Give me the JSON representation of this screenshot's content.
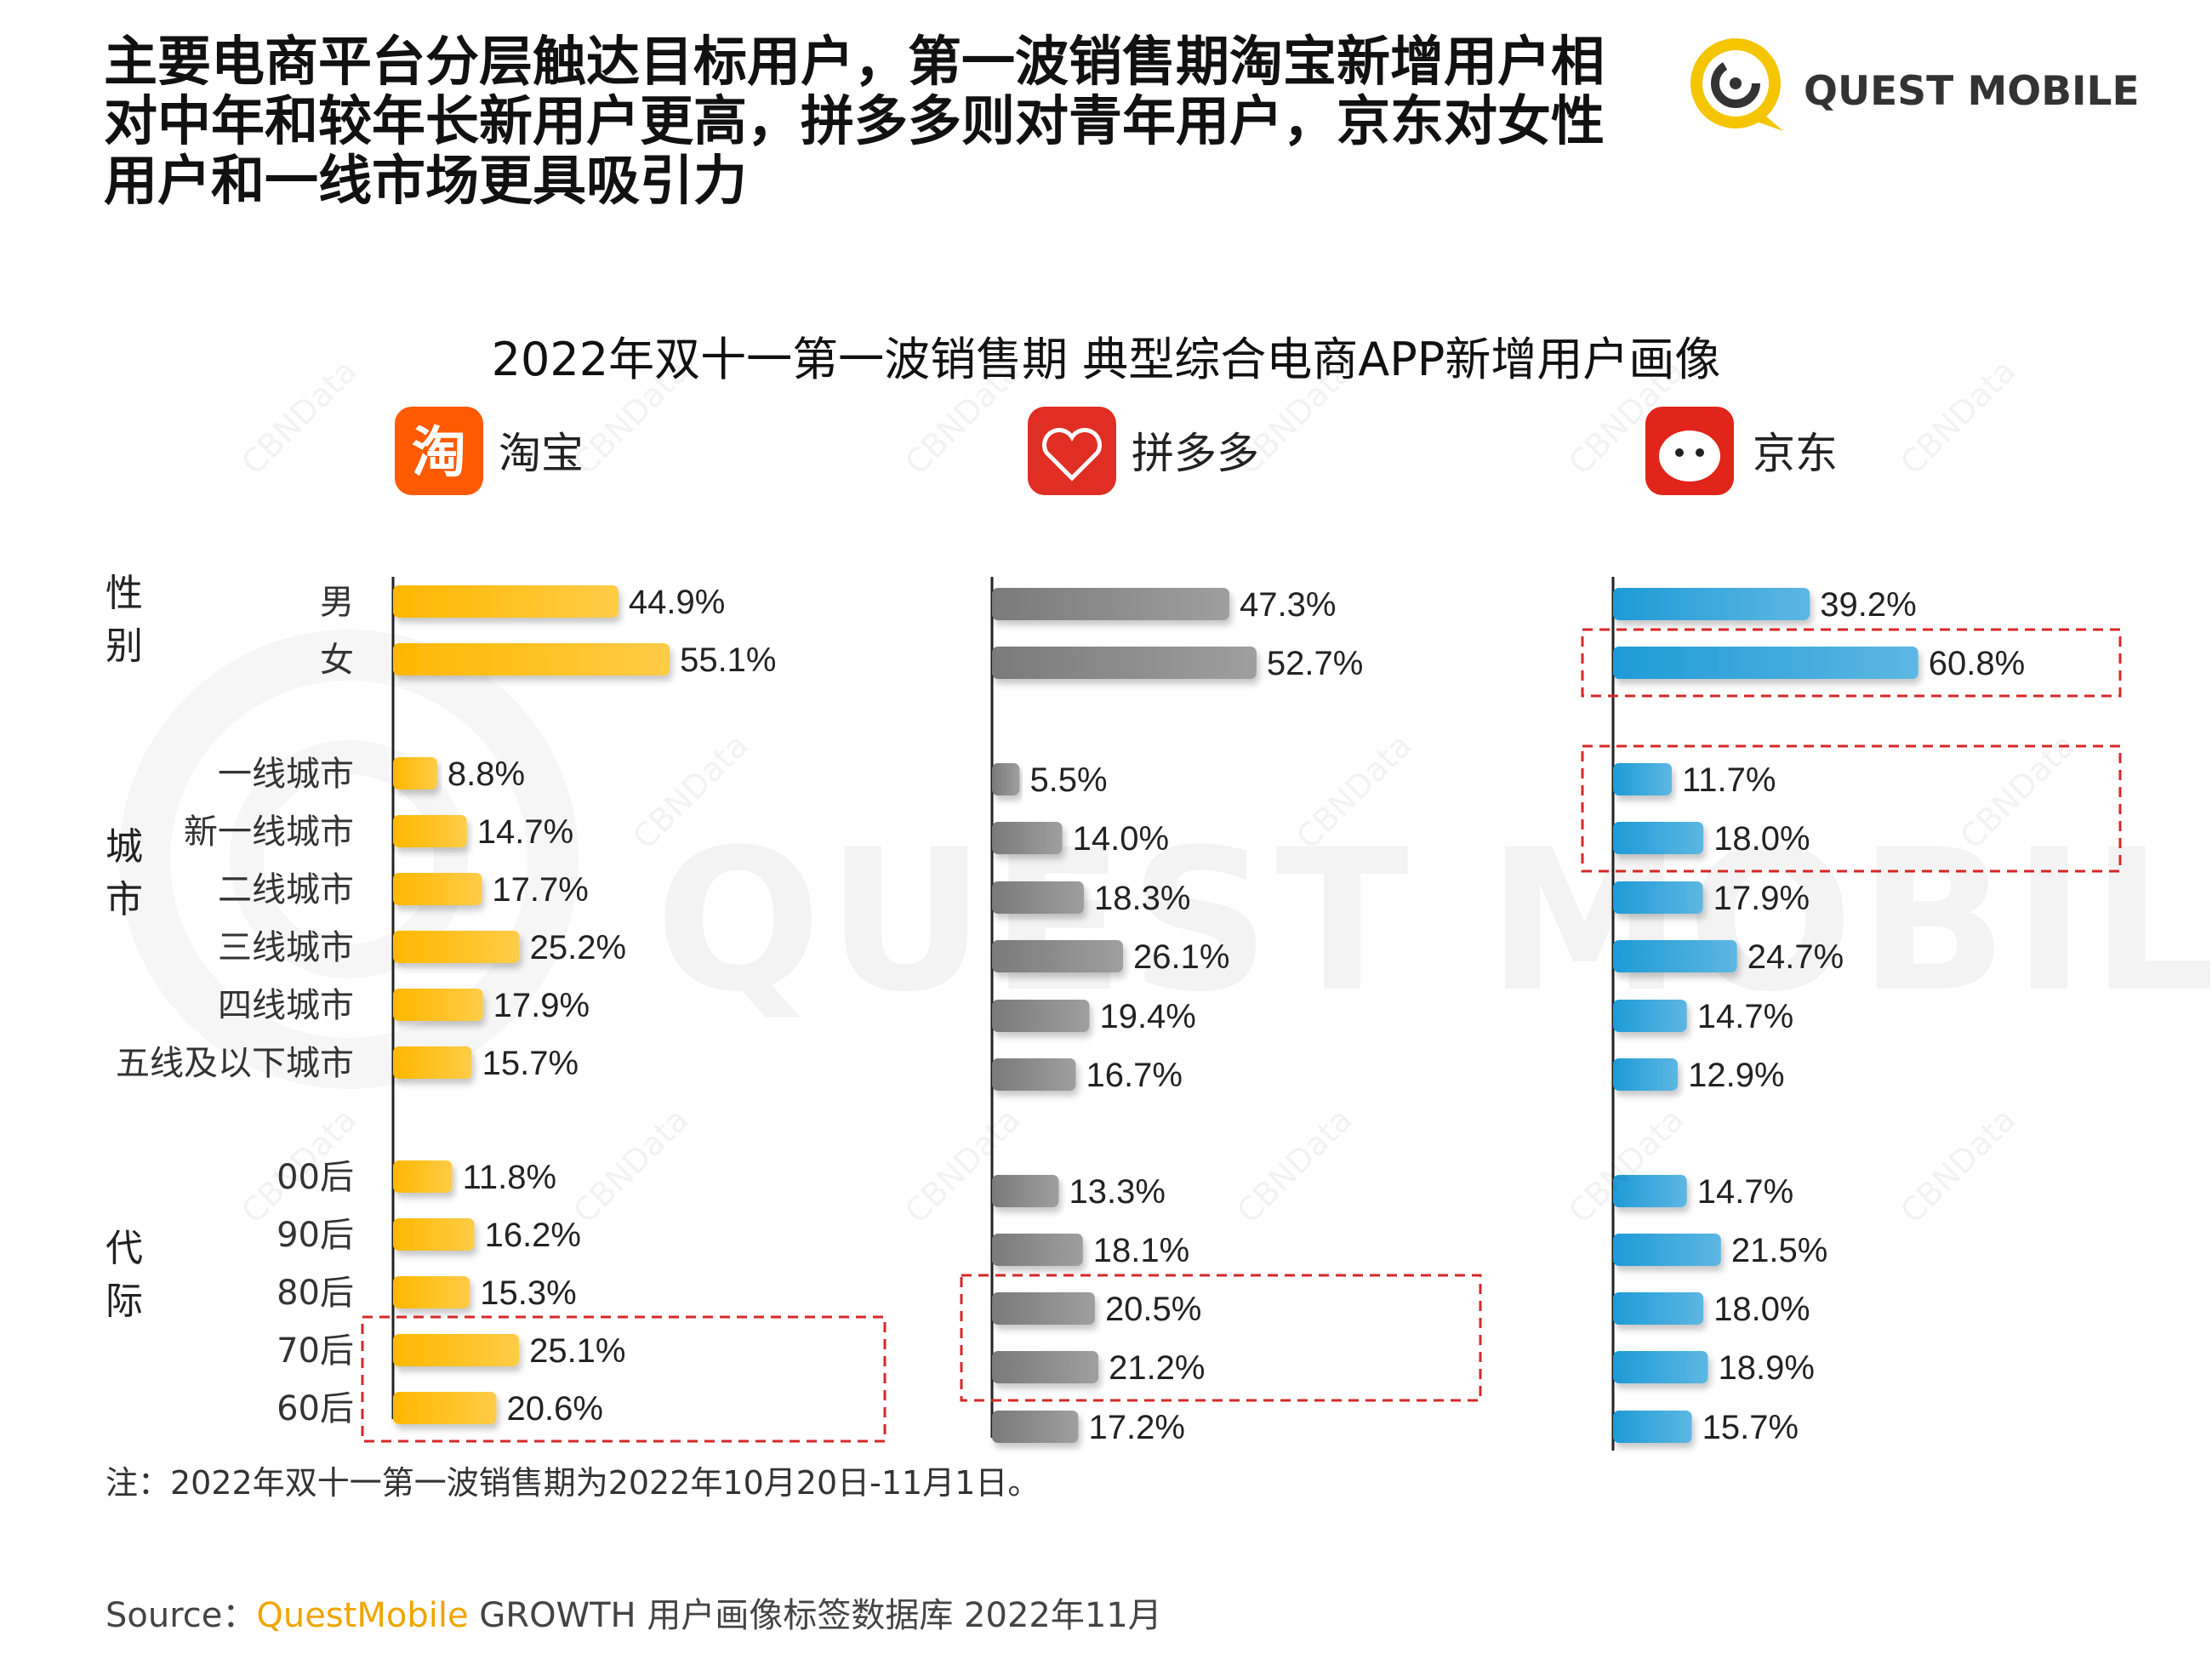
{
  "headline": [
    "主要电商平台分层触达目标用户，第一波销售期淘宝新增用户相",
    "对中年和较年长新用户更高，拼多多则对青年用户，京东对女性",
    "用户和一线市场更具吸引力"
  ],
  "logo": {
    "text": "QUEST MOBILE",
    "icon": "quest-mobile-logo-icon"
  },
  "watermark": {
    "text": "QUEST MOBILE",
    "tile": "CBNData"
  },
  "colors": {
    "taobao": "#FFB800",
    "pdd": "#7A7A7A",
    "jd": "#1E9BD7",
    "highlight": "#D62828",
    "brand": "#F0A500"
  },
  "chart_data": {
    "type": "bar",
    "title": "2022年双十一第一波销售期 典型综合电商APP新增用户画像",
    "groups": [
      {
        "label": "性别",
        "categories": [
          "男",
          "女"
        ]
      },
      {
        "label": "城市",
        "categories": [
          "一线城市",
          "新一线城市",
          "二线城市",
          "三线城市",
          "四线城市",
          "五线及以下城市"
        ]
      },
      {
        "label": "代际",
        "categories": [
          "00后",
          "90后",
          "80后",
          "70后",
          "60后"
        ]
      }
    ],
    "series": [
      {
        "name": "淘宝",
        "icon": "taobao-app-icon",
        "values": [
          [
            44.9,
            55.1
          ],
          [
            8.8,
            14.7,
            17.7,
            25.2,
            17.9,
            15.7
          ],
          [
            11.8,
            16.2,
            15.3,
            25.1,
            20.6
          ]
        ],
        "labels": [
          [
            "44.9%",
            "55.1%"
          ],
          [
            "8.8%",
            "14.7%",
            "17.7%",
            "25.2%",
            "17.9%",
            "15.7%"
          ],
          [
            "11.8%",
            "16.2%",
            "15.3%",
            "25.1%",
            "20.6%"
          ]
        ],
        "highlights": [
          {
            "group": 2,
            "from": 3,
            "to": 4
          }
        ]
      },
      {
        "name": "拼多多",
        "icon": "pinduoduo-app-icon",
        "values": [
          [
            47.3,
            52.7
          ],
          [
            5.5,
            14.0,
            18.3,
            26.1,
            19.4,
            16.7
          ],
          [
            13.3,
            18.1,
            20.5,
            21.2,
            17.2
          ]
        ],
        "labels": [
          [
            "47.3%",
            "52.7%"
          ],
          [
            "5.5%",
            "14.0%",
            "18.3%",
            "26.1%",
            "19.4%",
            "16.7%"
          ],
          [
            "13.3%",
            "18.1%",
            "20.5%",
            "21.2%",
            "17.2%"
          ]
        ],
        "highlights": [
          {
            "group": 2,
            "from": 2,
            "to": 3
          }
        ]
      },
      {
        "name": "京东",
        "icon": "jd-app-icon",
        "values": [
          [
            39.2,
            60.8
          ],
          [
            11.7,
            18.0,
            17.9,
            24.7,
            14.7,
            12.9
          ],
          [
            14.7,
            21.5,
            18.0,
            18.9,
            15.7
          ]
        ],
        "labels": [
          [
            "39.2%",
            "60.8%"
          ],
          [
            "11.7%",
            "18.0%",
            "17.9%",
            "24.7%",
            "14.7%",
            "12.9%"
          ],
          [
            "14.7%",
            "21.5%",
            "18.0%",
            "18.9%",
            "15.7%"
          ]
        ],
        "highlights": [
          {
            "group": 0,
            "from": 1,
            "to": 1
          },
          {
            "group": 1,
            "from": 0,
            "to": 1
          }
        ]
      }
    ]
  },
  "note": "注：2022年双十一第一波销售期为2022年10月20日-11月1日。",
  "source": {
    "prefix": "Source：",
    "brand": "QuestMobile",
    "rest": " GROWTH 用户画像标签数据库 2022年11月"
  }
}
